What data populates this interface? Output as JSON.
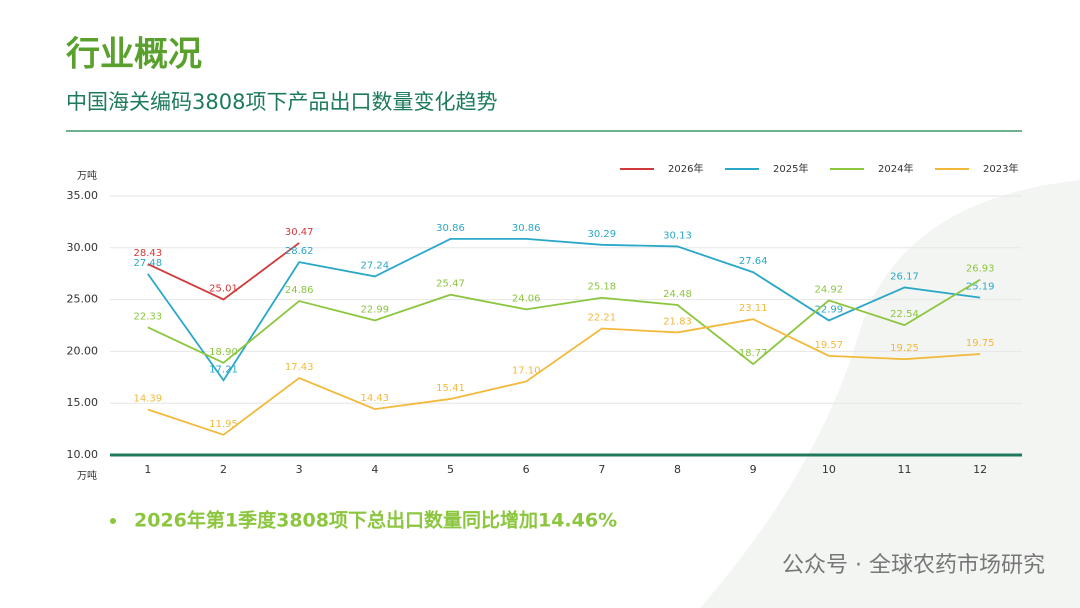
{
  "chart_data": {
    "type": "line",
    "page_title": "行业概况",
    "title": "中国海关编码3808项下产品出口数量变化趋势",
    "y_unit": "万吨",
    "x_unit": "万吨",
    "note": "2026年第1季度3808项下总出口数量同比增加14.46%",
    "watermark": "公众号 · 全球农药市场研究",
    "categories": [
      "1",
      "2",
      "3",
      "4",
      "5",
      "6",
      "7",
      "8",
      "9",
      "10",
      "11",
      "12"
    ],
    "ylim": [
      10,
      35
    ],
    "yticks": [
      {
        "value": 10,
        "label": "10.00"
      },
      {
        "value": 15,
        "label": "15.00"
      },
      {
        "value": 20,
        "label": "20.00"
      },
      {
        "value": 25,
        "label": "25.00"
      },
      {
        "value": 30,
        "label": "30.00"
      },
      {
        "value": 35,
        "label": "35.00"
      }
    ],
    "grid": true,
    "legend": "top-right",
    "series": [
      {
        "name": "2026年",
        "color": "#d03a3a",
        "values": [
          28.43,
          25.01,
          30.47,
          null,
          null,
          null,
          null,
          null,
          null,
          null,
          null,
          null
        ],
        "value_labels": [
          "28.43",
          "25.01",
          "30.47",
          null,
          null,
          null,
          null,
          null,
          null,
          null,
          null,
          null
        ]
      },
      {
        "name": "2025年",
        "color": "#2aa8c8",
        "values": [
          27.48,
          17.21,
          28.62,
          27.24,
          30.86,
          30.86,
          30.29,
          30.13,
          27.64,
          22.99,
          26.17,
          25.19
        ],
        "value_labels": [
          "27.48",
          "17.21",
          "28.62",
          "27.24",
          "30.86",
          "30.86",
          "30.29",
          "30.13",
          "27.64",
          "22.99",
          "26.17",
          "25.19"
        ]
      },
      {
        "name": "2024年",
        "color": "#8cc63f",
        "values": [
          22.33,
          18.9,
          24.86,
          22.99,
          25.47,
          24.06,
          25.18,
          24.48,
          18.77,
          24.92,
          22.54,
          26.93
        ],
        "value_labels": [
          "22.33",
          "18.90",
          "24.86",
          "22.99",
          "25.47",
          "24.06",
          "25.18",
          "24.48",
          "18.77",
          "24.92",
          "22.54",
          "26.93"
        ]
      },
      {
        "name": "2023年",
        "color": "#f2b93b",
        "values": [
          14.39,
          11.95,
          17.43,
          14.43,
          15.41,
          17.1,
          22.21,
          21.83,
          23.11,
          19.57,
          19.25,
          19.75
        ],
        "value_labels": [
          "14.39",
          "11.95",
          "17.43",
          "14.43",
          "15.41",
          "17.10",
          "22.21",
          "21.83",
          "23.11",
          "19.57",
          "19.25",
          "19.75"
        ]
      }
    ]
  }
}
